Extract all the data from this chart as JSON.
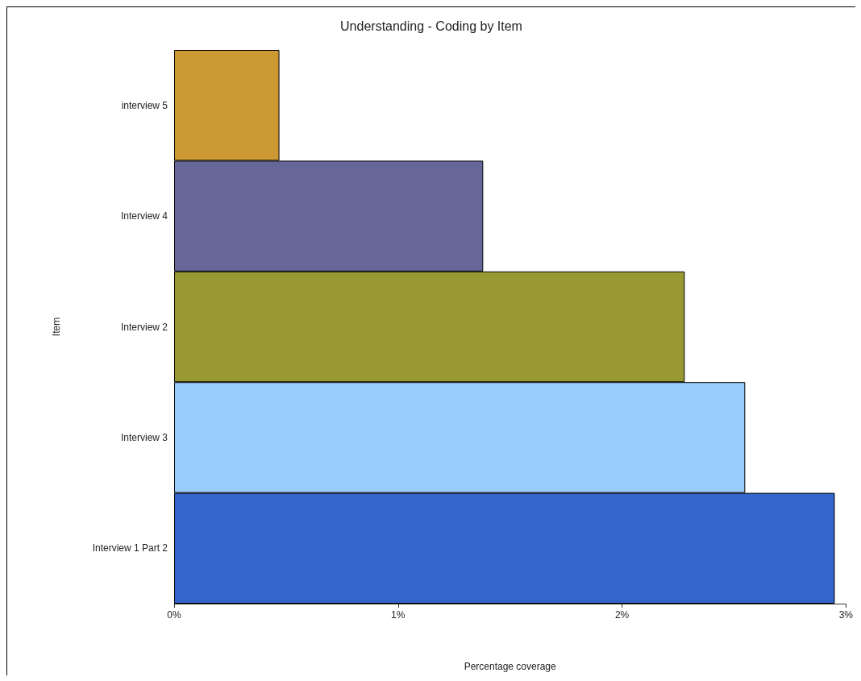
{
  "chart_data": {
    "type": "bar",
    "orientation": "horizontal",
    "title": "Understanding - Coding by Item",
    "xlabel": "Percentage coverage",
    "ylabel": "Item",
    "categories": [
      "interview 5",
      "Interview 4",
      "Interview 2",
      "Interview 3",
      "Interview 1 Part 2"
    ],
    "values": [
      0.47,
      1.38,
      2.28,
      2.55,
      2.95
    ],
    "colors": [
      "#cc9933",
      "#666699",
      "#999933",
      "#99ccff",
      "#3366cc"
    ],
    "xlim": [
      0,
      3
    ],
    "xticks": [
      {
        "value": 0,
        "label": "0%"
      },
      {
        "value": 1,
        "label": "1%"
      },
      {
        "value": 2,
        "label": "2%"
      },
      {
        "value": 3,
        "label": "3%"
      }
    ],
    "grid": false
  }
}
